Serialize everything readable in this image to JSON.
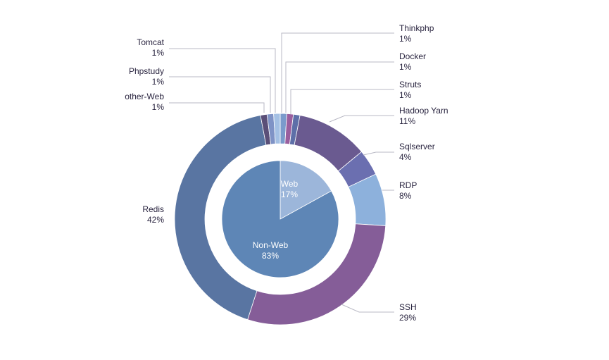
{
  "chart_data": {
    "type": "pie",
    "style": "donut-with-inner-pie",
    "inner": {
      "slices": [
        {
          "name": "Web",
          "value": 17,
          "label": "17%",
          "color": "#9cb6da"
        },
        {
          "name": "Non-Web",
          "value": 83,
          "label": "83%",
          "color": "#5e86b6"
        }
      ]
    },
    "outer": {
      "slices": [
        {
          "name": "Thinkphp",
          "value": 1,
          "label": "1%",
          "color": "#7b9bcc"
        },
        {
          "name": "Docker",
          "value": 1,
          "label": "1%",
          "color": "#9a5f9e"
        },
        {
          "name": "Struts",
          "value": 1,
          "label": "1%",
          "color": "#5e6fa8"
        },
        {
          "name": "Hadoop Yarn",
          "value": 11,
          "label": "11%",
          "color": "#6a5a90"
        },
        {
          "name": "Sqlserver",
          "value": 4,
          "label": "4%",
          "color": "#6b6fb0"
        },
        {
          "name": "RDP",
          "value": 8,
          "label": "8%",
          "color": "#8db1dc"
        },
        {
          "name": "SSH",
          "value": 29,
          "label": "29%",
          "color": "#855d98"
        },
        {
          "name": "Redis",
          "value": 42,
          "label": "42%",
          "color": "#5975a2"
        },
        {
          "name": "other-Web",
          "value": 1,
          "label": "1%",
          "color": "#5a4f78"
        },
        {
          "name": "Phpstudy",
          "value": 1,
          "label": "1%",
          "color": "#7f93c6"
        },
        {
          "name": "Tomcat",
          "value": 1,
          "label": "1%",
          "color": "#a4c0e4"
        }
      ]
    }
  }
}
